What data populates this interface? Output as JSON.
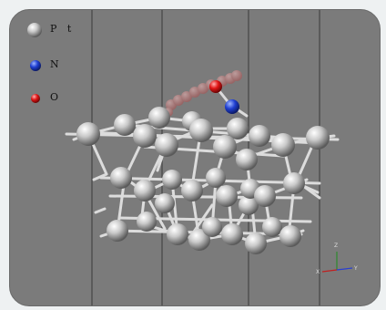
{
  "legend": [
    {
      "symbol": "Pt",
      "label": "P t",
      "color": "#d8d8d8"
    },
    {
      "symbol": "N",
      "label": "N",
      "color": "#1f3fd1"
    },
    {
      "symbol": "O",
      "label": "O",
      "color": "#e01515"
    }
  ],
  "axes": {
    "z": "Z",
    "x": "X",
    "y": "Y"
  },
  "colors": {
    "background": "#7b7b7b",
    "platinum": "#d8d8d8",
    "nitrogen": "#1f3fd1",
    "oxygen": "#e01515",
    "bond": "#d9d9d9",
    "ghost_oxygen": "#d77a7a"
  }
}
